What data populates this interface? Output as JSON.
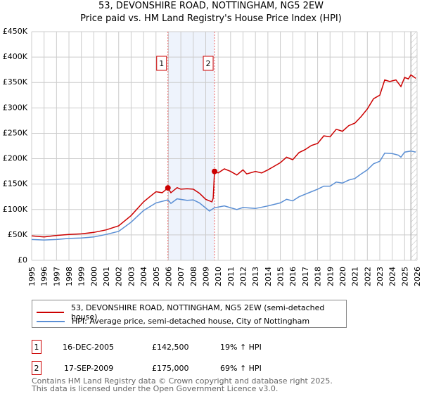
{
  "title": "53, DEVONSHIRE ROAD, NOTTINGHAM, NG5 2EW",
  "subtitle": "Price paid vs. HM Land Registry's House Price Index (HPI)",
  "chart_data": {
    "type": "line",
    "xlim": [
      1995,
      2026
    ],
    "ylim": [
      0,
      450000
    ],
    "yticks": [
      0,
      50000,
      100000,
      150000,
      200000,
      250000,
      300000,
      350000,
      400000,
      450000
    ],
    "ytick_labels": [
      "£0",
      "£50K",
      "£100K",
      "£150K",
      "£200K",
      "£250K",
      "£300K",
      "£350K",
      "£400K",
      "£450K"
    ],
    "xticks": [
      1995,
      1996,
      1997,
      1998,
      1999,
      2000,
      2001,
      2002,
      2003,
      2004,
      2005,
      2006,
      2007,
      2008,
      2009,
      2010,
      2011,
      2012,
      2013,
      2014,
      2015,
      2016,
      2017,
      2018,
      2019,
      2020,
      2021,
      2022,
      2023,
      2024,
      2025,
      2026
    ],
    "grid": true,
    "shaded_range": [
      2005.96,
      2009.71
    ],
    "forecast_hatch_from": 2025.5,
    "series": [
      {
        "name": "53, DEVONSHIRE ROAD, NOTTINGHAM, NG5 2EW (semi-detached house)",
        "color": "#cc0000",
        "x": [
          1995,
          1996,
          1997,
          1998,
          1999,
          2000,
          2001,
          2002,
          2003,
          2004,
          2004.5,
          2005,
          2005.5,
          2005.96,
          2006.2,
          2006.7,
          2007,
          2007.5,
          2008,
          2008.5,
          2009,
          2009.5,
          2009.6,
          2009.71,
          2010,
          2010.5,
          2011,
          2011.5,
          2012,
          2012.3,
          2013,
          2013.5,
          2014,
          2014.5,
          2015,
          2015.5,
          2016,
          2016.5,
          2017,
          2017.5,
          2018,
          2018.5,
          2019,
          2019.5,
          2020,
          2020.5,
          2021,
          2021.5,
          2022,
          2022.5,
          2023,
          2023.4,
          2023.8,
          2024.3,
          2024.7,
          2025,
          2025.3,
          2025.5,
          2025.9
        ],
        "values": [
          48000,
          46000,
          49000,
          51000,
          52000,
          55000,
          60000,
          68000,
          88000,
          115000,
          125000,
          135000,
          133000,
          142500,
          133000,
          143000,
          140000,
          141000,
          140000,
          132000,
          120000,
          115000,
          122000,
          175000,
          172000,
          180000,
          175000,
          168000,
          178000,
          170000,
          175000,
          172000,
          178000,
          185000,
          192000,
          203000,
          198000,
          212000,
          218000,
          226000,
          230000,
          245000,
          243000,
          258000,
          254000,
          265000,
          270000,
          283000,
          298000,
          318000,
          325000,
          355000,
          352000,
          355000,
          342000,
          360000,
          357000,
          365000,
          358000
        ]
      },
      {
        "name": "HPI: Average price, semi-detached house, City of Nottingham",
        "color": "#5b8fd4",
        "x": [
          1995,
          1996,
          1997,
          1998,
          1999,
          2000,
          2001,
          2002,
          2003,
          2004,
          2005,
          2005.96,
          2006.2,
          2006.7,
          2007.5,
          2008,
          2008.5,
          2009.3,
          2009.71,
          2010.5,
          2011.5,
          2012,
          2013,
          2014,
          2015,
          2015.5,
          2016,
          2016.5,
          2017,
          2017.5,
          2018,
          2018.5,
          2019,
          2019.5,
          2020,
          2020.5,
          2021,
          2021.5,
          2022,
          2022.5,
          2023,
          2023.4,
          2024,
          2024.5,
          2024.7,
          2025,
          2025.5,
          2025.9
        ],
        "values": [
          41000,
          40000,
          41000,
          43000,
          44000,
          46000,
          51000,
          57000,
          75000,
          98000,
          113000,
          119000,
          112000,
          121000,
          118000,
          119000,
          113000,
          97000,
          103500,
          107000,
          100000,
          104000,
          102000,
          107000,
          113000,
          120000,
          117000,
          125000,
          130000,
          135000,
          140000,
          146000,
          146000,
          154000,
          152000,
          158000,
          161000,
          170000,
          178000,
          190000,
          195000,
          211000,
          210000,
          207000,
          203000,
          213000,
          215000,
          213000
        ]
      }
    ],
    "sales": [
      {
        "id": "1",
        "x": 2005.96,
        "value": 142500,
        "date": "16-DEC-2005",
        "price": "£142,500",
        "hpi": "19% ↑ HPI"
      },
      {
        "id": "2",
        "x": 2009.71,
        "value": 175000,
        "date": "17-SEP-2009",
        "price": "£175,000",
        "hpi": "69% ↑ HPI"
      }
    ]
  },
  "legend": {
    "red_label": "53, DEVONSHIRE ROAD, NOTTINGHAM, NG5 2EW (semi-detached house)",
    "blue_label": "HPI: Average price, semi-detached house, City of Nottingham"
  },
  "footer": {
    "line1": "Contains HM Land Registry data © Crown copyright and database right 2025.",
    "line2": "This data is licensed under the Open Government Licence v3.0."
  }
}
